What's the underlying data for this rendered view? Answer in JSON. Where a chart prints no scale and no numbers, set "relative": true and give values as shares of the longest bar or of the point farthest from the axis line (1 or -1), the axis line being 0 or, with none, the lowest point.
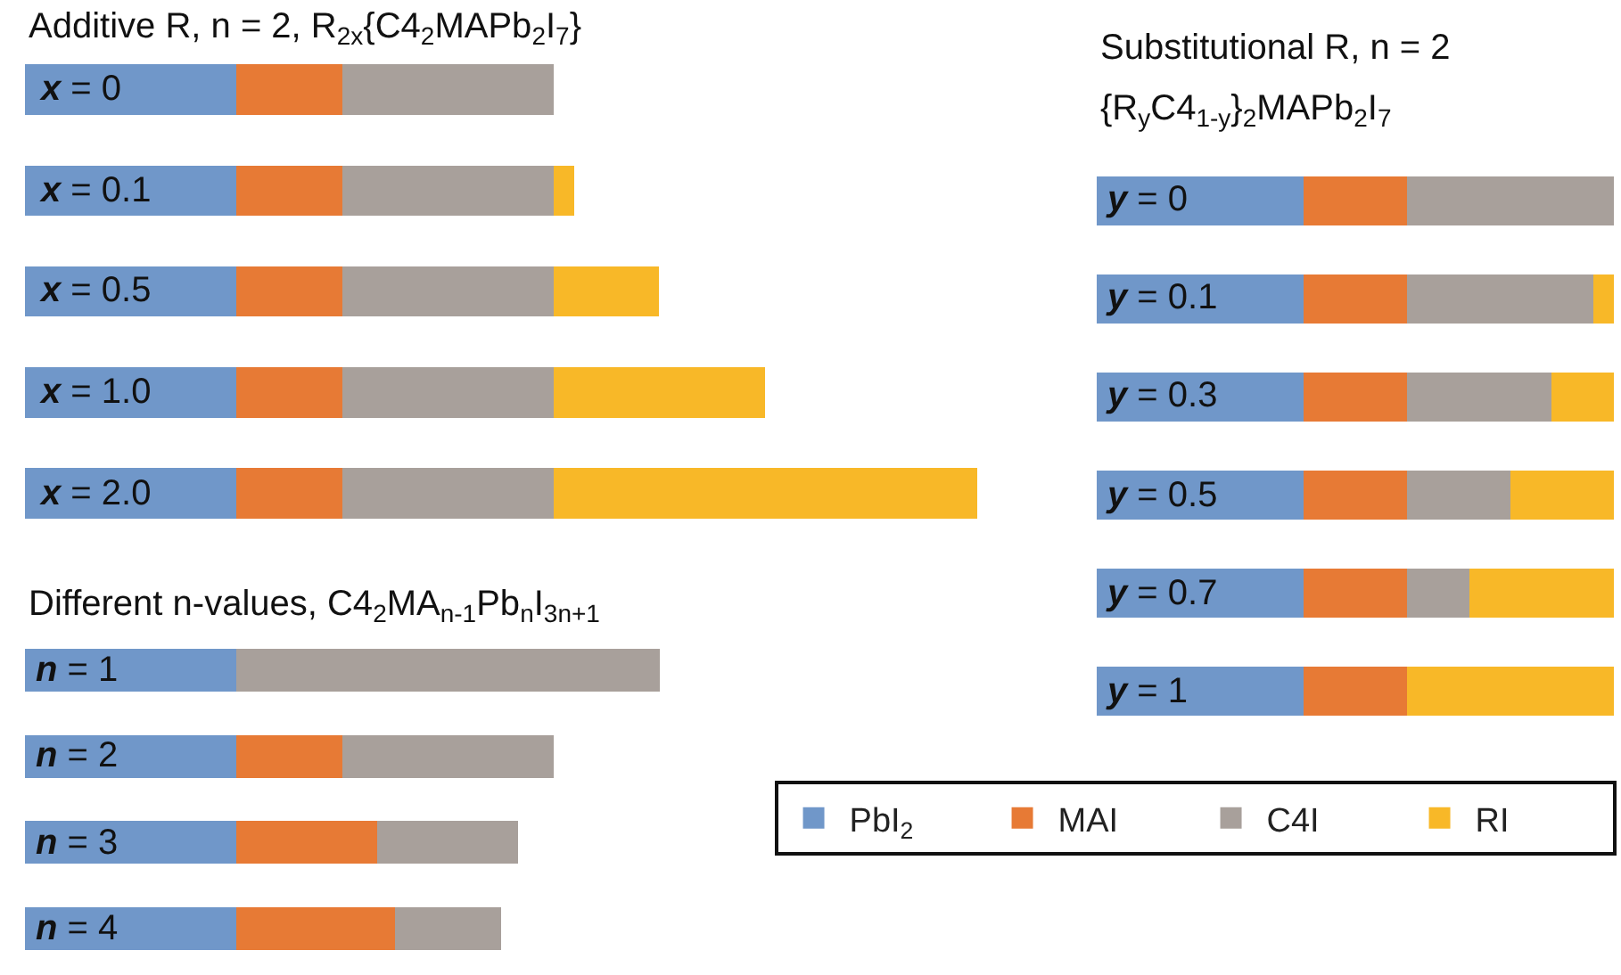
{
  "chart_data": [
    {
      "type": "bar",
      "title": "Additive R, n = 2, R$_{2x}${C4$_{2}$MAPb$_{2}$I$_{7}$}",
      "orientation": "horizontal",
      "stacked": true,
      "relative": true,
      "categories": [
        "x = 0",
        "x = 0.1",
        "x = 0.5",
        "x = 1.0",
        "x = 2.0"
      ],
      "series": [
        {
          "color": "#7097c9",
          "values": [
            0.222,
            0.222,
            0.222,
            0.222,
            0.222
          ]
        },
        {
          "color": "#e77a35",
          "values": [
            0.111,
            0.111,
            0.111,
            0.111,
            0.111
          ]
        },
        {
          "color": "#a8a09b",
          "values": [
            0.222,
            0.222,
            0.222,
            0.222,
            0.222
          ]
        },
        {
          "color": "#f8b828",
          "values": [
            0,
            0.022,
            0.111,
            0.222,
            0.445
          ]
        }
      ]
    },
    {
      "type": "bar",
      "title": "Different n-values, C4$_{2}$MA$_{n-1}$Pb$_{n}$I$_{3n+1}$",
      "orientation": "horizontal",
      "stacked": true,
      "relative": true,
      "categories": [
        "n = 1",
        "n = 2",
        "n = 3",
        "n = 4"
      ],
      "series": [
        {
          "color": "#7097c9",
          "values": [
            0.333,
            0.333,
            0.333,
            0.333
          ]
        },
        {
          "color": "#e77a35",
          "values": [
            0,
            0.167,
            0.222,
            0.25
          ]
        },
        {
          "color": "#a8a09b",
          "values": [
            0.667,
            0.333,
            0.222,
            0.167
          ]
        }
      ]
    },
    {
      "type": "bar",
      "title": "Substitutional R, n = 2",
      "subtitle": "{R$_{y}$C4$_{1-y}$}$_{2}$MAPb$_{2}$I$_{7}$",
      "orientation": "horizontal",
      "stacked": true,
      "relative": true,
      "legend": "bottom",
      "categories": [
        "y = 0",
        "y = 0.1",
        "y = 0.3",
        "y = 0.5",
        "y = 0.7",
        "y = 1"
      ],
      "series": [
        {
          "name": "PbI$_{2}$",
          "color": "#7097c9",
          "values": [
            0.4,
            0.4,
            0.4,
            0.4,
            0.4,
            0.4
          ]
        },
        {
          "name": "MAI",
          "color": "#e77a35",
          "values": [
            0.2,
            0.2,
            0.2,
            0.2,
            0.2,
            0.2
          ]
        },
        {
          "name": "C4I",
          "color": "#a8a09b",
          "values": [
            0.4,
            0.36,
            0.28,
            0.2,
            0.12,
            0
          ]
        },
        {
          "name": "RI",
          "color": "#f8b828",
          "values": [
            0,
            0.04,
            0.12,
            0.2,
            0.28,
            0.4
          ]
        }
      ]
    }
  ]
}
